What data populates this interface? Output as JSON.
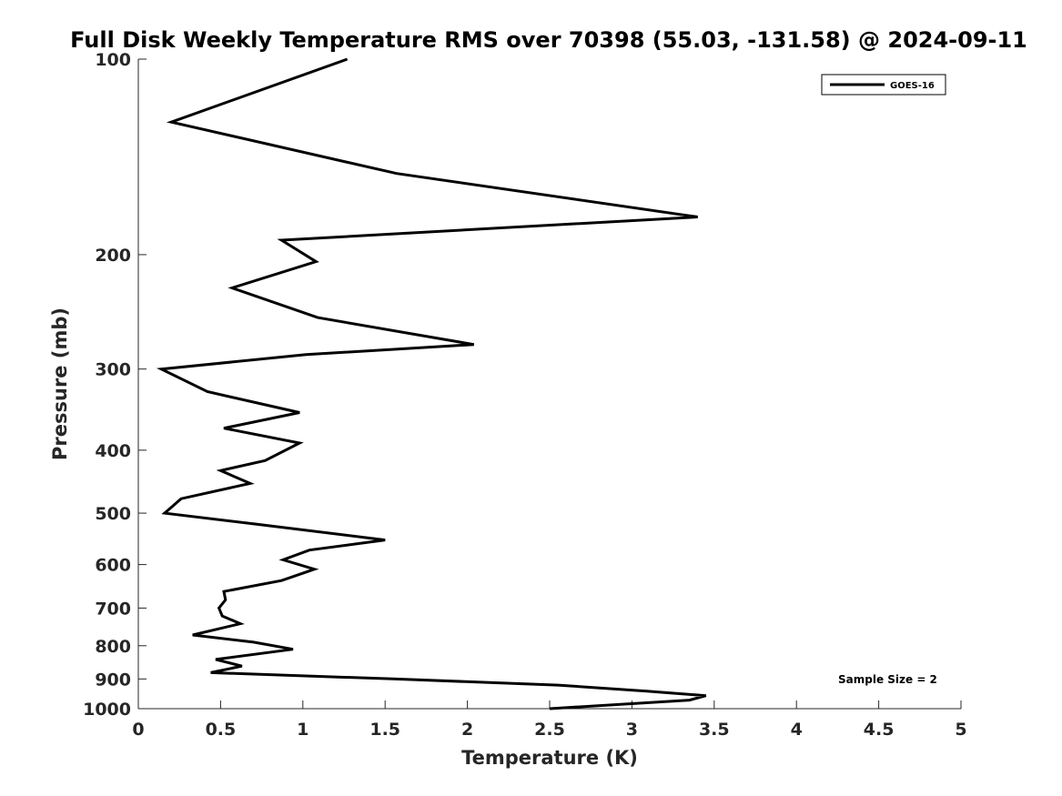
{
  "chart_data": {
    "type": "line",
    "title": "Full Disk Weekly Temperature RMS over 70398 (55.03, -131.58) @ 2024-09-11",
    "xlabel": "Temperature (K)",
    "ylabel": "Pressure (mb)",
    "xlim": [
      0,
      5
    ],
    "ylim": [
      100,
      1000
    ],
    "y_scale": "log",
    "y_reversed": true,
    "x_ticks": [
      "0",
      "0.5",
      "1",
      "1.5",
      "2",
      "2.5",
      "3",
      "3.5",
      "4",
      "4.5",
      "5"
    ],
    "y_ticks": [
      "100",
      "200",
      "300",
      "400",
      "500",
      "600",
      "700",
      "800",
      "900",
      "1000"
    ],
    "grid": false,
    "legend_position": "top-right",
    "annotation": "Sample Size = 2",
    "series": [
      {
        "name": "GOES-16",
        "color": "#000000",
        "points": [
          [
            1.27,
            100
          ],
          [
            0.2,
            125
          ],
          [
            1.57,
            150
          ],
          [
            3.4,
            175
          ],
          [
            0.87,
            190
          ],
          [
            1.08,
            205
          ],
          [
            0.57,
            225
          ],
          [
            1.09,
            250
          ],
          [
            2.04,
            275
          ],
          [
            1.02,
            285
          ],
          [
            0.14,
            300
          ],
          [
            0.42,
            325
          ],
          [
            0.98,
            350
          ],
          [
            0.52,
            370
          ],
          [
            0.98,
            390
          ],
          [
            0.77,
            415
          ],
          [
            0.5,
            430
          ],
          [
            0.68,
            450
          ],
          [
            0.26,
            475
          ],
          [
            0.2,
            490
          ],
          [
            0.16,
            500
          ],
          [
            0.72,
            520
          ],
          [
            1.5,
            550
          ],
          [
            1.04,
            570
          ],
          [
            0.88,
            590
          ],
          [
            1.07,
            610
          ],
          [
            0.87,
            635
          ],
          [
            0.52,
            660
          ],
          [
            0.53,
            680
          ],
          [
            0.49,
            700
          ],
          [
            0.51,
            720
          ],
          [
            0.62,
            740
          ],
          [
            0.33,
            770
          ],
          [
            0.7,
            790
          ],
          [
            0.94,
            810
          ],
          [
            0.47,
            840
          ],
          [
            0.63,
            860
          ],
          [
            0.44,
            880
          ],
          [
            1.55,
            900
          ],
          [
            2.55,
            920
          ],
          [
            3.09,
            940
          ],
          [
            3.45,
            955
          ],
          [
            3.35,
            970
          ],
          [
            2.5,
            1000
          ]
        ]
      }
    ]
  }
}
